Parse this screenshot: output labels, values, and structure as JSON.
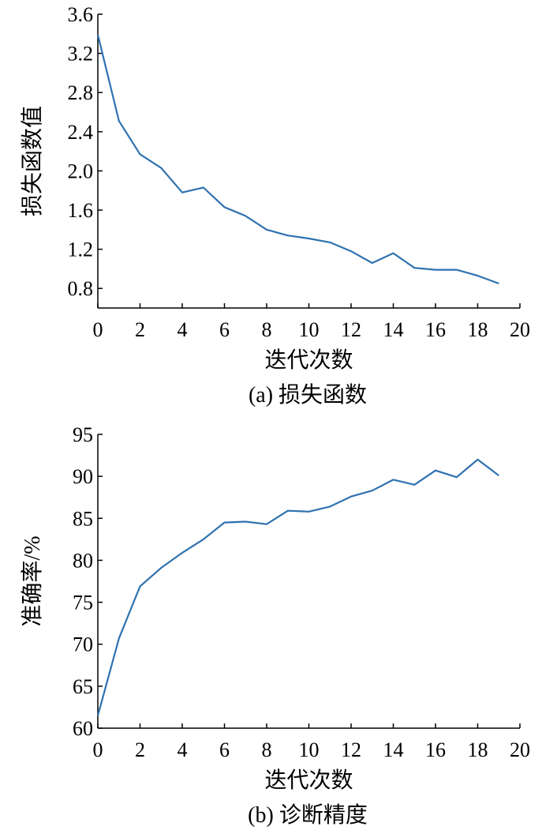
{
  "chart_data": [
    {
      "type": "line",
      "caption": "(a) 损失函数",
      "xlabel": "迭代次数",
      "ylabel": "损失函数值",
      "xlim": [
        0,
        20
      ],
      "ylim": [
        0.6,
        3.6
      ],
      "xticks": [
        0,
        2,
        4,
        6,
        8,
        10,
        12,
        14,
        16,
        18,
        20
      ],
      "yticks": [
        "0.8",
        "1.2",
        "1.6",
        "2.0",
        "2.4",
        "2.8",
        "3.2",
        "3.6"
      ],
      "grid": false,
      "color": "#2f72b0",
      "x": [
        0,
        1,
        2,
        3,
        4,
        5,
        6,
        7,
        8,
        9,
        10,
        11,
        12,
        13,
        14,
        15,
        16,
        17,
        18,
        19
      ],
      "y": [
        3.39,
        2.51,
        2.17,
        2.03,
        1.78,
        1.83,
        1.63,
        1.54,
        1.4,
        1.34,
        1.31,
        1.27,
        1.18,
        1.06,
        1.16,
        1.01,
        0.99,
        0.99,
        0.93,
        0.85
      ]
    },
    {
      "type": "line",
      "caption": "(b) 诊断精度",
      "xlabel": "迭代次数",
      "ylabel": "准确率/%",
      "xlim": [
        0,
        20
      ],
      "ylim": [
        60,
        95
      ],
      "xticks": [
        0,
        2,
        4,
        6,
        8,
        10,
        12,
        14,
        16,
        18,
        20
      ],
      "yticks": [
        "60",
        "65",
        "70",
        "75",
        "80",
        "85",
        "90",
        "95"
      ],
      "grid": false,
      "color": "#2f72b0",
      "x": [
        0,
        1,
        2,
        3,
        4,
        5,
        6,
        7,
        8,
        9,
        10,
        11,
        12,
        13,
        14,
        15,
        16,
        17,
        18,
        19
      ],
      "y": [
        61.5,
        70.7,
        76.9,
        79.1,
        80.9,
        82.5,
        84.5,
        84.6,
        84.3,
        85.9,
        85.8,
        86.4,
        87.6,
        88.3,
        89.6,
        89.0,
        90.7,
        89.9,
        92.0,
        90.1
      ]
    }
  ]
}
